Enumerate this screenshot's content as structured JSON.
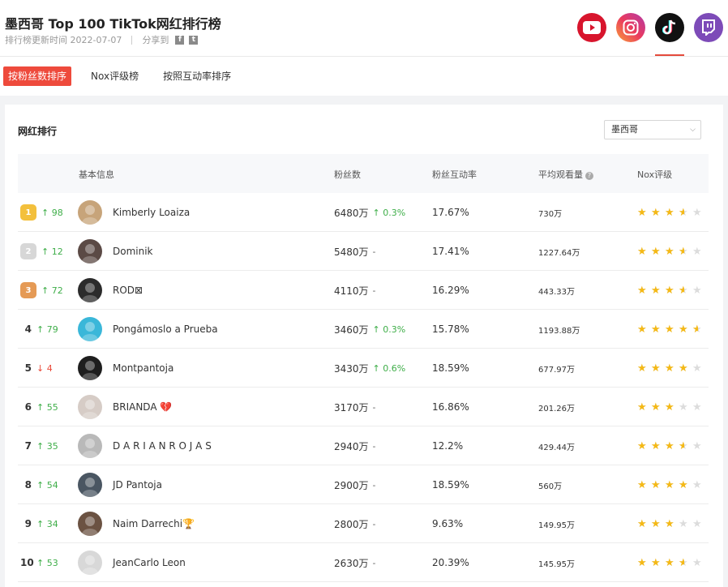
{
  "header": {
    "title": "墨西哥 Top 100 TikTok网红排行榜",
    "updated": "排行榜更新时间 2022-07-07",
    "share_label": "分享到",
    "share_icons": [
      "facebook-icon",
      "twitter-icon"
    ]
  },
  "platforms": [
    {
      "name": "youtube",
      "icon": "youtube-icon",
      "color": "#d8152d"
    },
    {
      "name": "instagram",
      "icon": "instagram-icon",
      "color": "#e1306c"
    },
    {
      "name": "tiktok",
      "icon": "tiktok-icon",
      "color": "#111111",
      "active": true
    },
    {
      "name": "twitch",
      "icon": "twitch-icon",
      "color": "#7d4bb8"
    }
  ],
  "tabs": [
    {
      "label": "按粉丝数排序",
      "active": true
    },
    {
      "label": "Nox评级榜",
      "active": false
    },
    {
      "label": "按照互动率排序",
      "active": false
    }
  ],
  "card": {
    "title": "网红排行",
    "region_select": "墨西哥"
  },
  "table": {
    "headers": {
      "basic": "基本信息",
      "fans": "粉丝数",
      "engagement": "粉丝互动率",
      "avg_views": "平均观看量",
      "nox": "Nox评级"
    },
    "rows": [
      {
        "rank": "1",
        "medal": "gold",
        "change_dir": "up",
        "change": "98",
        "name": "Kimberly Loaiza",
        "fans": "6480万",
        "fans_delta": "0.3%",
        "engagement": "17.67%",
        "avg_views": "730万",
        "stars": 3.5,
        "avatar_color": "#c7a47a"
      },
      {
        "rank": "2",
        "medal": "silver",
        "change_dir": "up",
        "change": "12",
        "name": "Dominik",
        "fans": "5480万",
        "fans_delta": "-",
        "engagement": "17.41%",
        "avg_views": "1227.64万",
        "stars": 3.5,
        "avatar_color": "#5b4a45"
      },
      {
        "rank": "3",
        "medal": "bronze",
        "change_dir": "up",
        "change": "72",
        "name": "ROD⊠",
        "fans": "4110万",
        "fans_delta": "-",
        "engagement": "16.29%",
        "avg_views": "443.33万",
        "stars": 3.5,
        "avatar_color": "#2b2b2b"
      },
      {
        "rank": "4",
        "medal": "",
        "change_dir": "up",
        "change": "79",
        "name": "Pongámoslo a Prueba",
        "fans": "3460万",
        "fans_delta": "0.3%",
        "engagement": "15.78%",
        "avg_views": "1193.88万",
        "stars": 4.5,
        "avatar_color": "#3ab7d9"
      },
      {
        "rank": "5",
        "medal": "",
        "change_dir": "down",
        "change": "4",
        "name": "Montpantoja",
        "fans": "3430万",
        "fans_delta": "0.6%",
        "engagement": "18.59%",
        "avg_views": "677.97万",
        "stars": 4,
        "avatar_color": "#1e1e1e"
      },
      {
        "rank": "6",
        "medal": "",
        "change_dir": "up",
        "change": "55",
        "name": "BRIANDA 💔",
        "fans": "3170万",
        "fans_delta": "-",
        "engagement": "16.86%",
        "avg_views": "201.26万",
        "stars": 3,
        "avatar_color": "#d6ccc6"
      },
      {
        "rank": "7",
        "medal": "",
        "change_dir": "up",
        "change": "35",
        "name": "D A R I A N R O J A S",
        "fans": "2940万",
        "fans_delta": "-",
        "engagement": "12.2%",
        "avg_views": "429.44万",
        "stars": 3.5,
        "avatar_color": "#b9b9b9"
      },
      {
        "rank": "8",
        "medal": "",
        "change_dir": "up",
        "change": "54",
        "name": "JD Pantoja",
        "fans": "2900万",
        "fans_delta": "-",
        "engagement": "18.59%",
        "avg_views": "560万",
        "stars": 4,
        "avatar_color": "#4a5662"
      },
      {
        "rank": "9",
        "medal": "",
        "change_dir": "up",
        "change": "34",
        "name": "Naim Darrechi🏆",
        "fans": "2800万",
        "fans_delta": "-",
        "engagement": "9.63%",
        "avg_views": "149.95万",
        "stars": 3,
        "avatar_color": "#6b5242"
      },
      {
        "rank": "10",
        "medal": "",
        "change_dir": "up",
        "change": "53",
        "name": "JeanCarlo Leon",
        "fans": "2630万",
        "fans_delta": "-",
        "engagement": "20.39%",
        "avg_views": "145.95万",
        "stars": 3.5,
        "avatar_color": "#d8d8d8"
      }
    ]
  },
  "colors": {
    "accent": "#ee4a3c",
    "up": "#3fae49",
    "down": "#ea4a3a",
    "star": "#f5b916"
  }
}
